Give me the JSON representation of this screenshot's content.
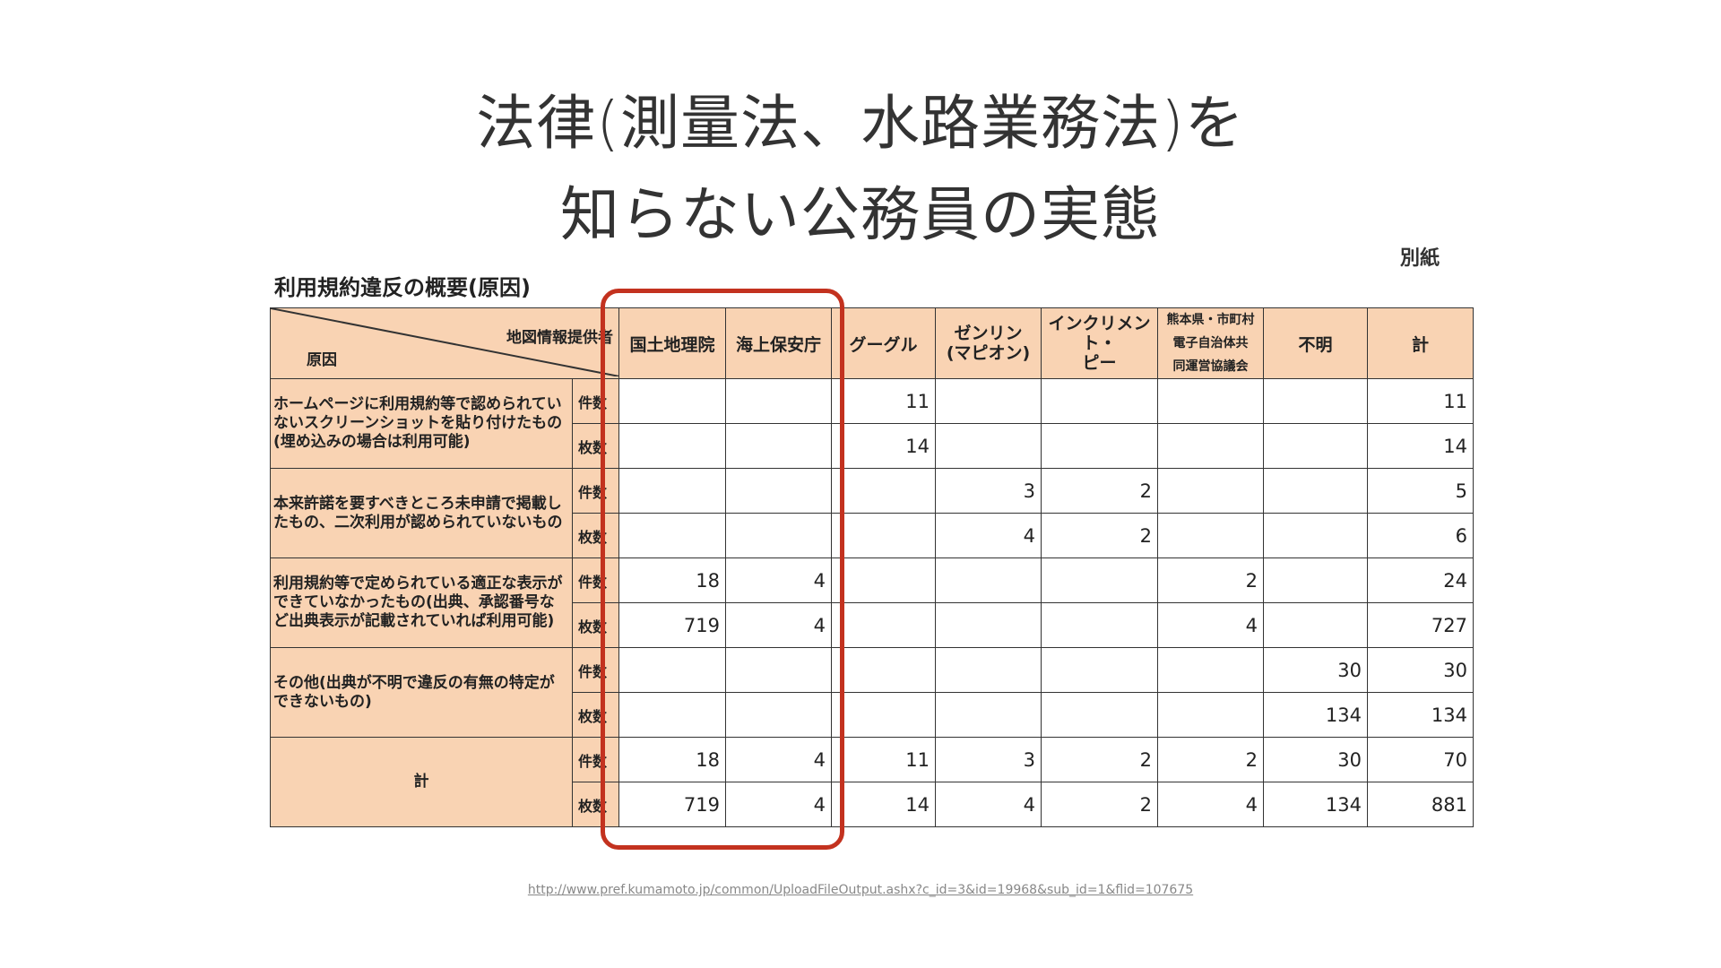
{
  "title_line1": "法律(測量法、水路業務法)を",
  "title_line2": "知らない公務員の実態",
  "note": "別紙",
  "table_title": "利用規約違反の概要(原因)",
  "header": {
    "provider_label": "地図情報提供者",
    "cause_label": "原因",
    "columns": [
      "国土地理院",
      "海上保安庁",
      "グーグル",
      "ゼンリン\n(マピオン)",
      "インクリメント・\nピー",
      "熊本県・市町村\n電子自治体共\n同運営協議会",
      "不明",
      "計"
    ]
  },
  "units": {
    "count": "件数",
    "sheets": "枚数"
  },
  "rows": [
    {
      "cause": "ホームページに利用規約等で認められていないスクリーンショットを貼り付けたもの(埋め込みの場合は利用可能)",
      "count": [
        "",
        "",
        "11",
        "",
        "",
        "",
        "",
        "11"
      ],
      "sheets": [
        "",
        "",
        "14",
        "",
        "",
        "",
        "",
        "14"
      ]
    },
    {
      "cause": "本来許諾を要すべきところ未申請で掲載したもの、二次利用が認められていないもの",
      "count": [
        "",
        "",
        "",
        "3",
        "2",
        "",
        "",
        "5"
      ],
      "sheets": [
        "",
        "",
        "",
        "4",
        "2",
        "",
        "",
        "6"
      ]
    },
    {
      "cause": "利用規約等で定められている適正な表示ができていなかったもの(出典、承認番号など出典表示が記載されていれば利用可能)",
      "count": [
        "18",
        "4",
        "",
        "",
        "",
        "2",
        "",
        "24"
      ],
      "sheets": [
        "719",
        "4",
        "",
        "",
        "",
        "4",
        "",
        "727"
      ]
    },
    {
      "cause": "その他(出典が不明で違反の有無の特定ができないもの)",
      "count": [
        "",
        "",
        "",
        "",
        "",
        "",
        "30",
        "30"
      ],
      "sheets": [
        "",
        "",
        "",
        "",
        "",
        "",
        "134",
        "134"
      ]
    },
    {
      "cause": "計",
      "count": [
        "18",
        "4",
        "11",
        "3",
        "2",
        "2",
        "30",
        "70"
      ],
      "sheets": [
        "719",
        "4",
        "14",
        "4",
        "2",
        "4",
        "134",
        "881"
      ]
    }
  ],
  "highlight_color": "#c3321f",
  "source_url": "http://www.pref.kumamoto.jp/common/UploadFileOutput.ashx?c_id=3&id=19968&sub_id=1&flid=107675"
}
